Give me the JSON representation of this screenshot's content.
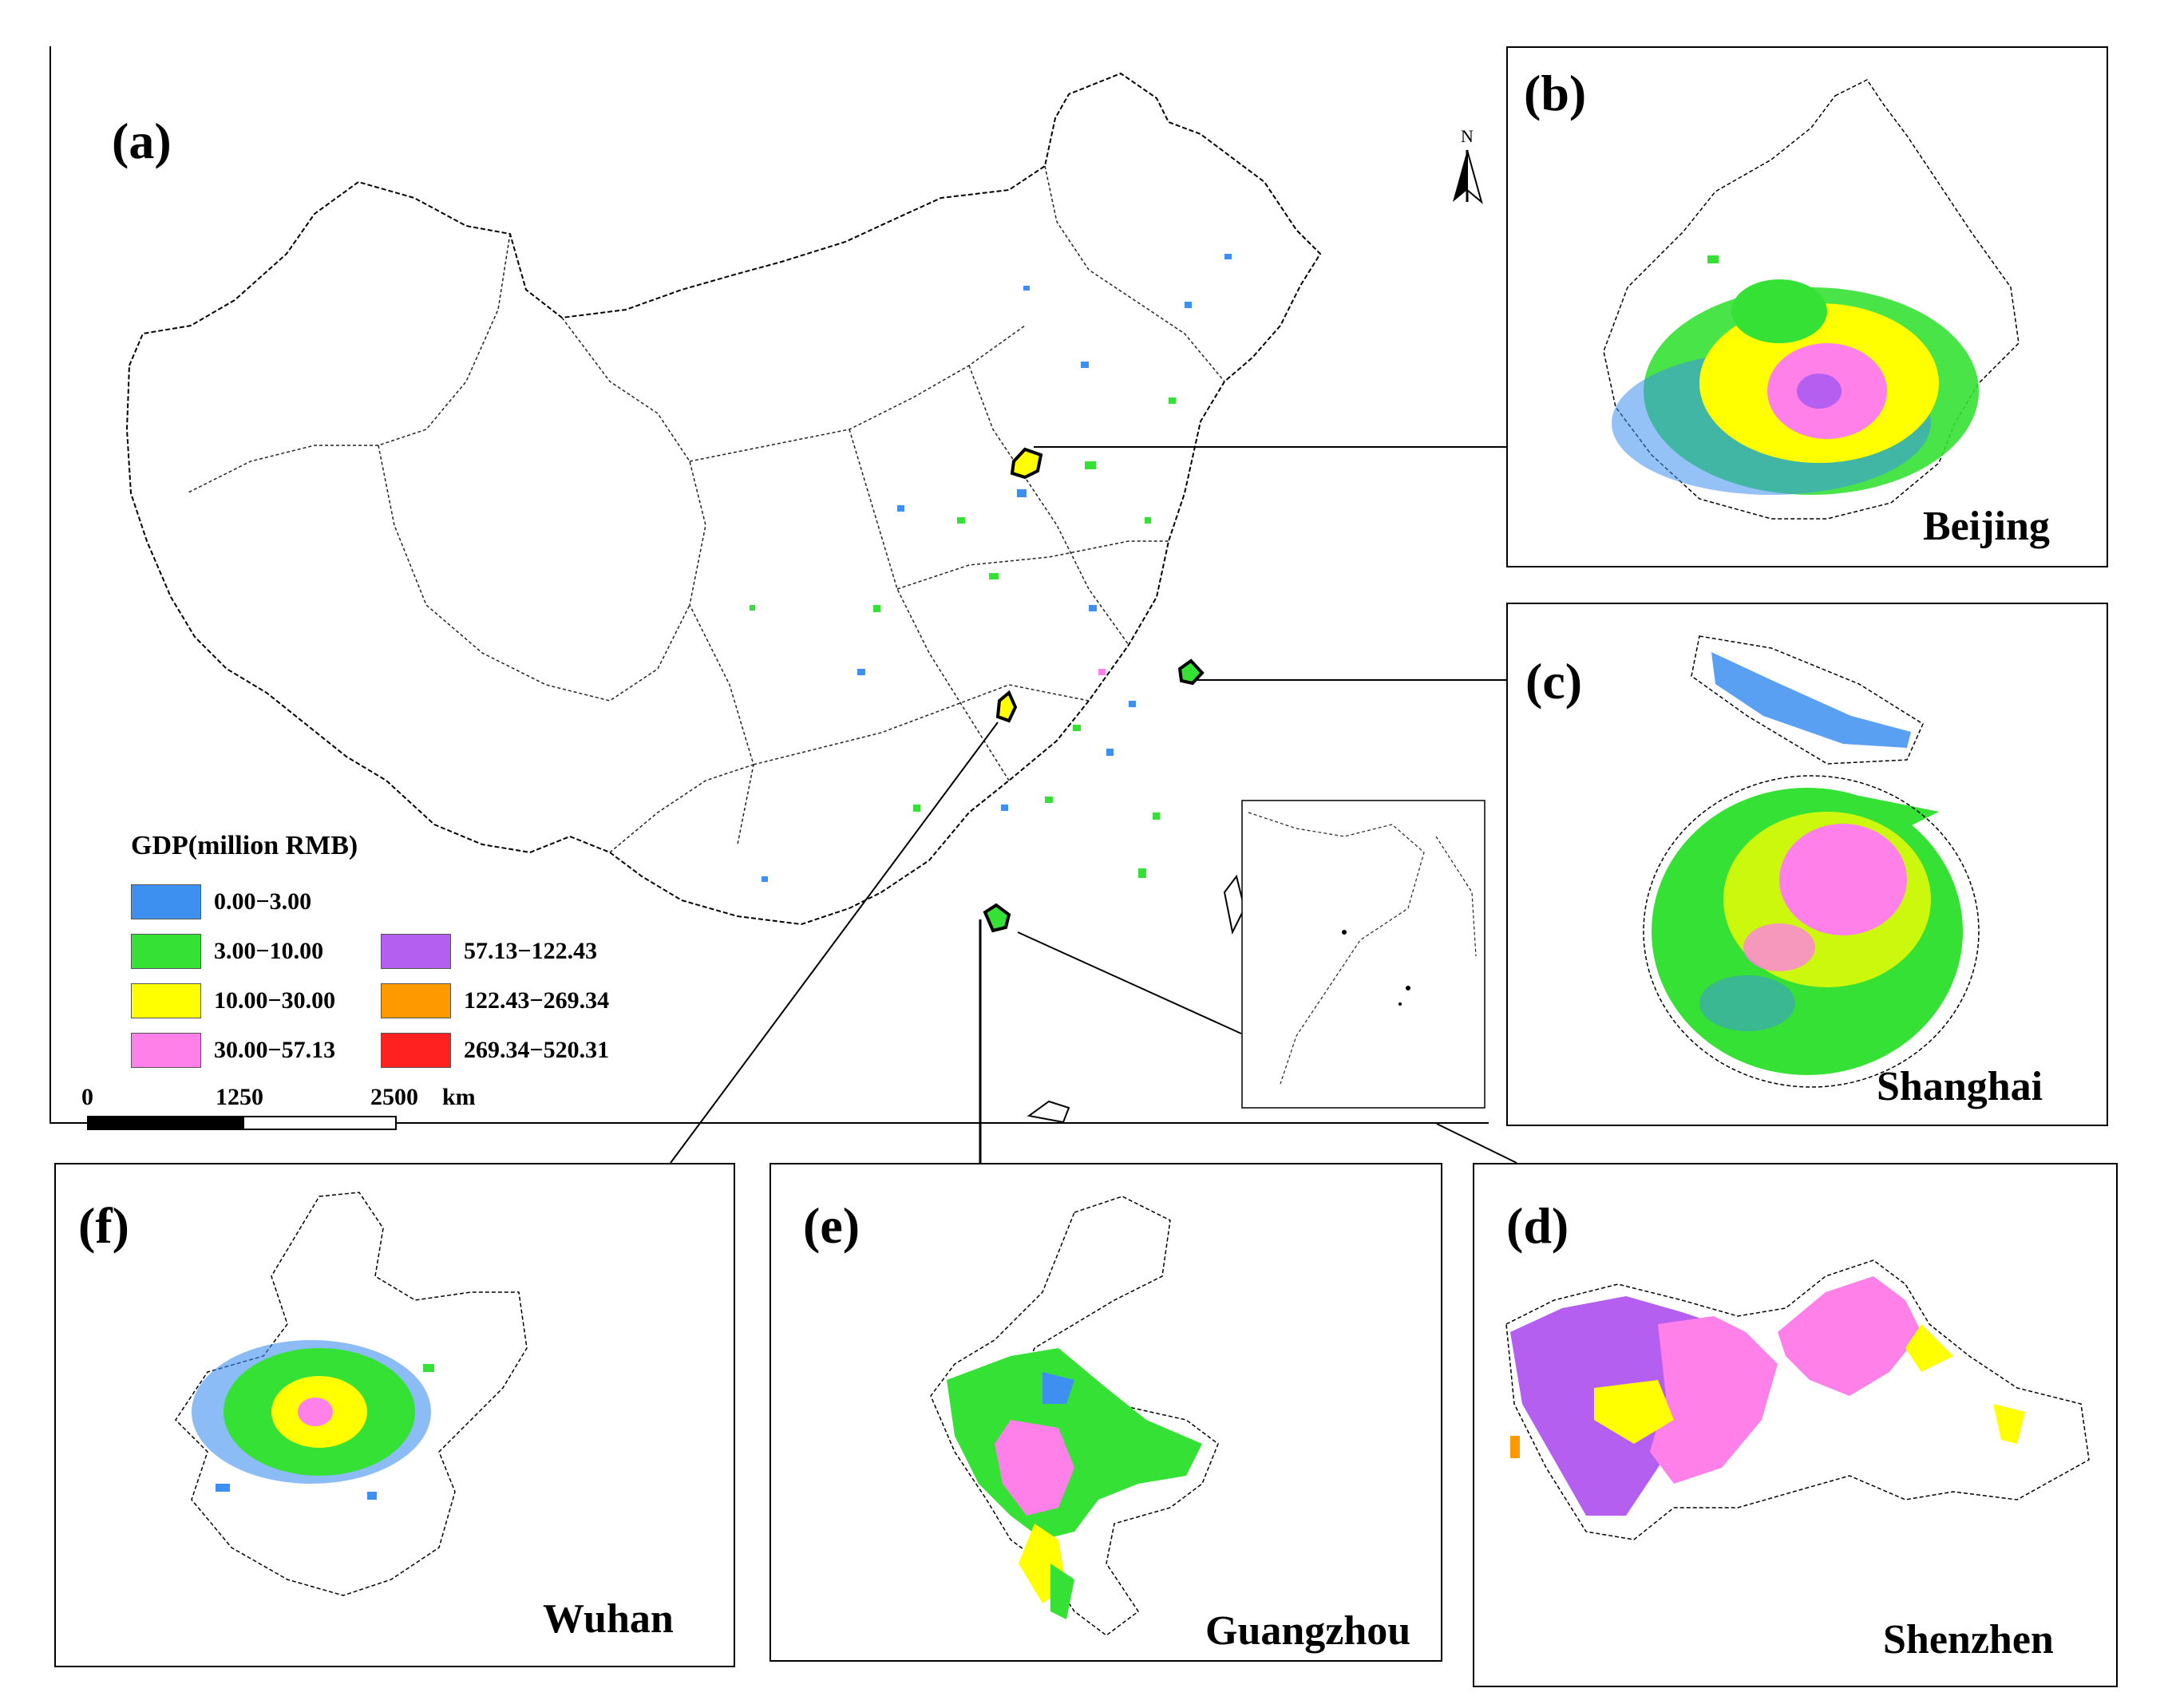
{
  "panels": {
    "a": {
      "label": "(a)"
    },
    "b": {
      "label": "(b)",
      "city": "Beijing"
    },
    "c": {
      "label": "(c)",
      "city": "Shanghai"
    },
    "d": {
      "label": "(d)",
      "city": "Shenzhen"
    },
    "e": {
      "label": "(e)",
      "city": "Guangzhou"
    },
    "f": {
      "label": "(f)",
      "city": "Wuhan"
    }
  },
  "legend": {
    "title": "GDP(million RMB)",
    "classes": [
      {
        "range": "0.00−3.00",
        "color": "#3d8ff0"
      },
      {
        "range": "3.00−10.00",
        "color": "#34e134"
      },
      {
        "range": "10.00−30.00",
        "color": "#ffff00"
      },
      {
        "range": "30.00−57.13",
        "color": "#ff80e8"
      },
      {
        "range": "57.13−122.43",
        "color": "#b45ff0"
      },
      {
        "range": "122.43−269.34",
        "color": "#ff9900"
      },
      {
        "range": "269.34−520.31",
        "color": "#ff2020"
      }
    ]
  },
  "scale_bar": {
    "ticks": [
      "0",
      "1250",
      "2500"
    ],
    "unit": "km"
  },
  "north_arrow": {
    "label": "N"
  }
}
